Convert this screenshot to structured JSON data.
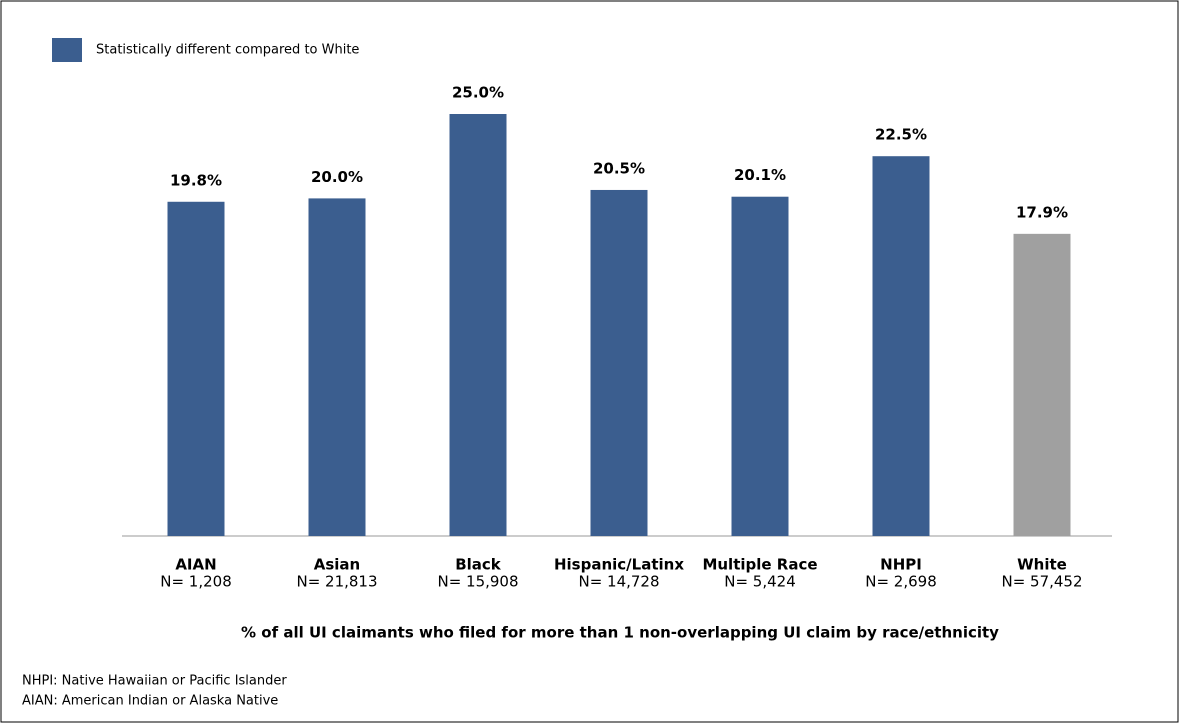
{
  "chart_data": {
    "type": "bar",
    "legend": {
      "label": "Statistically different compared to White",
      "color": "#3b5e8f"
    },
    "categories": [
      "AIAN",
      "Asian",
      "Black",
      "Hispanic/Latinx",
      "Multiple Race",
      "NHPI",
      "White"
    ],
    "sample_sizes": [
      "N= 1,208",
      "N= 21,813",
      "N= 15,908",
      "N= 14,728",
      "N= 5,424",
      "N= 2,698",
      "N= 57,452"
    ],
    "values": [
      19.8,
      20.0,
      25.0,
      20.5,
      20.1,
      22.5,
      17.9
    ],
    "value_labels": [
      "19.8%",
      "20.0%",
      "25.0%",
      "20.5%",
      "20.1%",
      "22.5%",
      "17.9%"
    ],
    "colors": [
      "#3b5e8f",
      "#3b5e8f",
      "#3b5e8f",
      "#3b5e8f",
      "#3b5e8f",
      "#3b5e8f",
      "#a0a0a0"
    ],
    "ylim": [
      0,
      25
    ],
    "x_label": "% of all UI claimants who filed for more than 1 non-overlapping UI claim by race/ethnicity",
    "footnotes": [
      "NHPI: Native Hawaiian or Pacific Islander",
      "AIAN: American Indian or Alaska Native"
    ]
  }
}
